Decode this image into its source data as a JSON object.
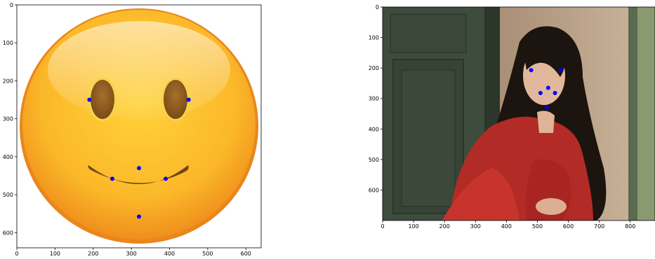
{
  "chart_data": [
    {
      "type": "scatter",
      "image": "smiley-emoji",
      "xlim": [
        0,
        640
      ],
      "ylim": [
        640,
        0
      ],
      "xticks": [
        0,
        100,
        200,
        300,
        400,
        500,
        600
      ],
      "yticks": [
        0,
        100,
        200,
        300,
        400,
        500,
        600
      ],
      "x": [
        190,
        450,
        320,
        250,
        390,
        320
      ],
      "y": [
        250,
        250,
        430,
        458,
        458,
        558
      ],
      "marker_color": "#0000ff"
    },
    {
      "type": "scatter",
      "image": "photo-woman-red-dress",
      "xlim": [
        0,
        880
      ],
      "ylim": [
        700,
        0
      ],
      "xticks": [
        0,
        100,
        200,
        300,
        400,
        500,
        600,
        700,
        800
      ],
      "yticks": [
        0,
        100,
        200,
        300,
        400,
        500,
        600
      ],
      "x": [
        480,
        575,
        535,
        510,
        557,
        530
      ],
      "y": [
        207,
        207,
        265,
        282,
        282,
        330
      ],
      "marker_color": "#0000ff"
    }
  ]
}
